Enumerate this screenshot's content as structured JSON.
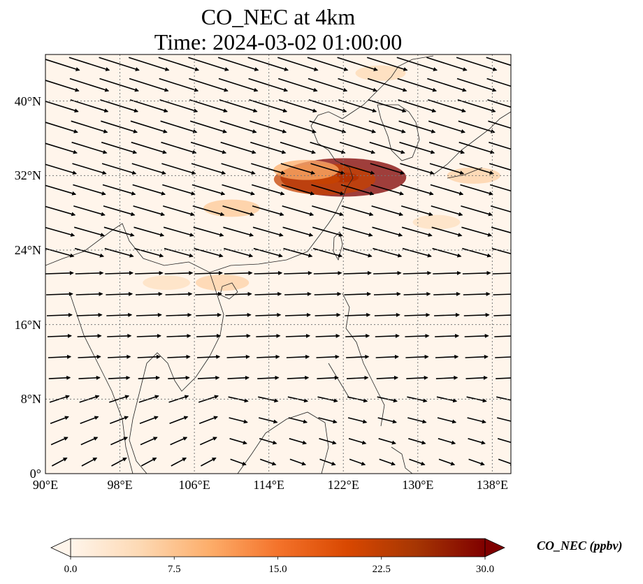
{
  "title_line1": "CO_NEC at 4km",
  "title_line2": "Time: 2024-03-02 01:00:00",
  "map": {
    "lon_range": [
      90,
      140
    ],
    "lat_range": [
      0,
      45
    ],
    "lon_ticks": [
      "90°E",
      "98°E",
      "106°E",
      "114°E",
      "122°E",
      "130°E",
      "138°E"
    ],
    "lon_tick_values": [
      90,
      98,
      106,
      114,
      122,
      130,
      138
    ],
    "lat_ticks": [
      "0°",
      "8°N",
      "16°N",
      "24°N",
      "32°N",
      "40°N"
    ],
    "lat_tick_values": [
      0,
      8,
      16,
      24,
      32,
      40
    ],
    "gridlines": true,
    "background_color": "#fff5eb",
    "hotspots": [
      {
        "lon": 122.0,
        "lat": 31.8,
        "value": 30
      },
      {
        "lon": 120.0,
        "lat": 31.6,
        "value": 22
      },
      {
        "lon": 118.0,
        "lat": 32.6,
        "value": 10
      },
      {
        "lon": 110.0,
        "lat": 28.5,
        "value": 7
      },
      {
        "lon": 109.0,
        "lat": 20.5,
        "value": 6
      },
      {
        "lon": 103.0,
        "lat": 20.5,
        "value": 4
      },
      {
        "lon": 126.0,
        "lat": 43.0,
        "value": 5
      },
      {
        "lon": 136.0,
        "lat": 32.0,
        "value": 6
      },
      {
        "lon": 132.0,
        "lat": 27.0,
        "value": 4
      }
    ]
  },
  "colorbar": {
    "label": "CO_NEC (ppbv)",
    "min": 0,
    "max": 30,
    "ticks": [
      "0.0",
      "7.5",
      "15.0",
      "22.5",
      "30.0"
    ],
    "tick_values": [
      0,
      7.5,
      15,
      22.5,
      30
    ],
    "colormap": [
      "#fff5eb",
      "#fdd9b4",
      "#fdae6b",
      "#f4732b",
      "#d94801",
      "#a63603",
      "#7f0000"
    ],
    "extend": "both"
  }
}
